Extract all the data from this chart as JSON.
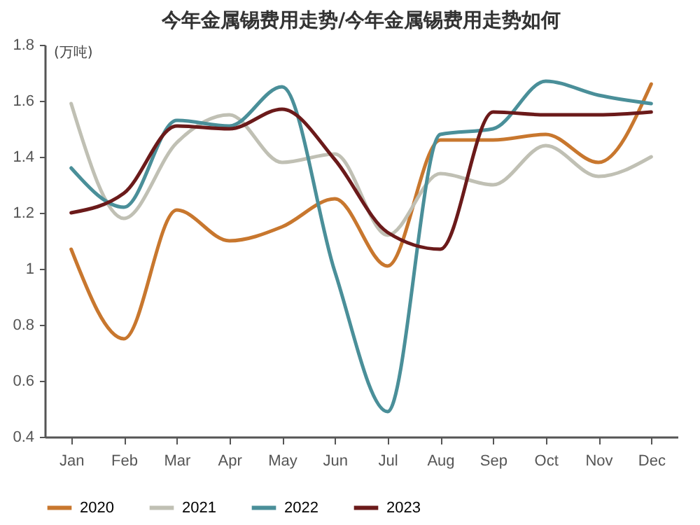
{
  "chart_data": {
    "type": "line",
    "title": "今年金属锡费用走势/今年金属锡费用走势如何",
    "ylabel": "(万吨)",
    "categories": [
      "Jan",
      "Feb",
      "Mar",
      "Apr",
      "May",
      "Jun",
      "Jul",
      "Aug",
      "Sep",
      "Oct",
      "Nov",
      "Dec"
    ],
    "series": [
      {
        "name": "2020",
        "color": "#c8772e",
        "values": [
          1.07,
          0.75,
          1.21,
          1.1,
          1.15,
          1.25,
          1.01,
          1.46,
          1.46,
          1.48,
          1.38,
          1.66
        ]
      },
      {
        "name": "2021",
        "color": "#c0c0b4",
        "values": [
          1.59,
          1.18,
          1.45,
          1.55,
          1.38,
          1.41,
          1.12,
          1.34,
          1.3,
          1.44,
          1.33,
          1.4
        ]
      },
      {
        "name": "2022",
        "color": "#4a8f99",
        "values": [
          1.36,
          1.22,
          1.53,
          1.51,
          1.65,
          0.99,
          0.49,
          1.48,
          1.5,
          1.67,
          1.62,
          1.59
        ]
      },
      {
        "name": "2023",
        "color": "#6b1a1a",
        "values": [
          1.2,
          1.27,
          1.51,
          1.5,
          1.57,
          1.39,
          1.13,
          1.07,
          1.56,
          1.55,
          1.55,
          1.56
        ]
      }
    ],
    "ylim": [
      0.4,
      1.8
    ],
    "yticks": [
      0.4,
      0.6,
      0.8,
      {
        "value": 1,
        "label": "1"
      },
      1.2,
      1.4,
      1.6,
      1.8
    ],
    "grid": false,
    "legend": "bottom",
    "line_style": "solid",
    "marker": "none"
  }
}
